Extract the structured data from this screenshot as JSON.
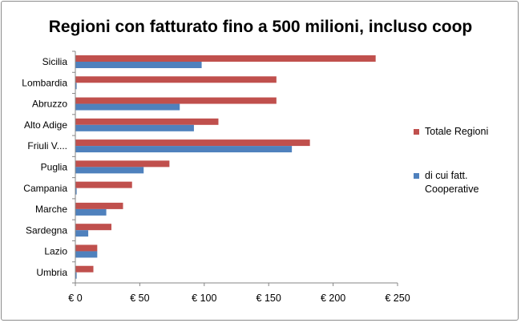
{
  "chart_data": {
    "type": "bar",
    "orientation": "horizontal",
    "title": "Regioni con fatturato  fino a 500 milioni, incluso coop",
    "categories": [
      "Sicilia",
      "Lombardia",
      "Abruzzo",
      "Alto Adige",
      "Friuli V....",
      "Puglia",
      "Campania",
      "Marche",
      "Sardegna",
      "Lazio",
      "Umbria"
    ],
    "series": [
      {
        "name": "Totale Regioni",
        "color": "#c0504d",
        "values": [
          233,
          156,
          156,
          111,
          182,
          73,
          44,
          37,
          28,
          17,
          14
        ]
      },
      {
        "name": "di cui fatt. Cooperative",
        "color": "#4f81bd",
        "values": [
          98,
          1,
          81,
          92,
          168,
          53,
          1,
          24,
          10,
          17,
          1
        ]
      }
    ],
    "xlim": [
      0,
      250
    ],
    "xticks": [
      0,
      50,
      100,
      150,
      200,
      250
    ],
    "xtick_labels": [
      "€ 0",
      "€ 50",
      "€ 100",
      "€ 150",
      "€ 200",
      "€ 250"
    ],
    "xlabel": "",
    "ylabel": "",
    "grid": false,
    "legend_position": "right"
  }
}
